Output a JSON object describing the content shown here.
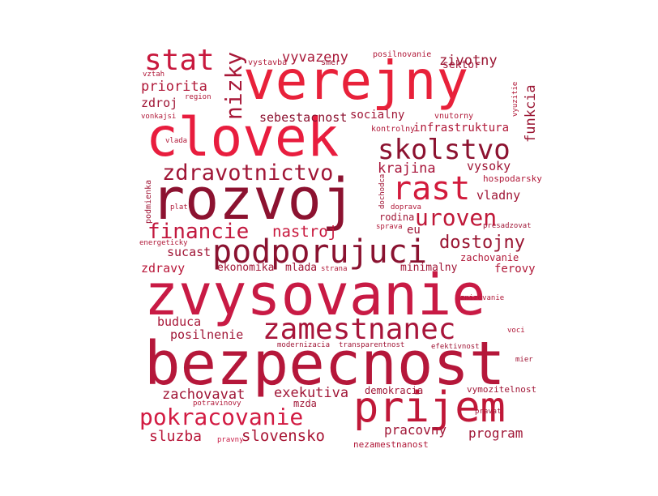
{
  "words": [
    {
      "text": "bezpecnost",
      "color": "#b5173a"
    },
    {
      "text": "zvysovanie",
      "color": "#c81a44"
    },
    {
      "text": "rozvoj",
      "color": "#8c1230"
    },
    {
      "text": "clovek",
      "color": "#e81d3e"
    },
    {
      "text": "verejny",
      "color": "#e8213a"
    },
    {
      "text": "prijem",
      "color": "#c01838"
    },
    {
      "text": "podporujuci",
      "color": "#8a1230"
    },
    {
      "text": "zamestnanec",
      "color": "#a8153a"
    },
    {
      "text": "skolstvo",
      "color": "#8c1230"
    },
    {
      "text": "rast",
      "color": "#d21b3c"
    },
    {
      "text": "stat",
      "color": "#c8193e"
    },
    {
      "text": "zdravotnictvo",
      "color": "#a01636"
    },
    {
      "text": "uroven",
      "color": "#c01838"
    },
    {
      "text": "pokracovanie",
      "color": "#d21b42"
    },
    {
      "text": "financie",
      "color": "#c2183e"
    },
    {
      "text": "nizky",
      "color": "#a81838"
    },
    {
      "text": "dostojny",
      "color": "#9a1532"
    },
    {
      "text": "slovensko",
      "color": "#a81534"
    },
    {
      "text": "nastroj",
      "color": "#c8193e"
    },
    {
      "text": "krajina",
      "color": "#a8153a"
    },
    {
      "text": "sluzba",
      "color": "#b81638"
    },
    {
      "text": "zachovavat",
      "color": "#a01636"
    },
    {
      "text": "exekutiva",
      "color": "#a01636"
    },
    {
      "text": "zivotny",
      "color": "#9a1532"
    },
    {
      "text": "vyvazeny",
      "color": "#a81838"
    },
    {
      "text": "funkcia",
      "color": "#9a1532"
    },
    {
      "text": "priorita",
      "color": "#b01838"
    },
    {
      "text": "pracovny",
      "color": "#a01636"
    },
    {
      "text": "program",
      "color": "#a01636"
    },
    {
      "text": "sebestacnost",
      "color": "#8c1230"
    },
    {
      "text": "socialny",
      "color": "#a01636"
    },
    {
      "text": "infrastruktura",
      "color": "#b01838"
    },
    {
      "text": "posilnenie",
      "color": "#a01636"
    },
    {
      "text": "buduca",
      "color": "#a81838"
    },
    {
      "text": "vladny",
      "color": "#a01636"
    },
    {
      "text": "vysoky",
      "color": "#a01636"
    },
    {
      "text": "zdroj",
      "color": "#a01636"
    },
    {
      "text": "sucast",
      "color": "#a01636"
    },
    {
      "text": "zdravy",
      "color": "#b81638"
    },
    {
      "text": "ekonomika",
      "color": "#a01636"
    },
    {
      "text": "mlada",
      "color": "#a01636"
    },
    {
      "text": "minimalny",
      "color": "#a01636"
    },
    {
      "text": "ferovy",
      "color": "#b01838"
    },
    {
      "text": "eu",
      "color": "#a01636"
    },
    {
      "text": "rodina",
      "color": "#a01636"
    },
    {
      "text": "sektor",
      "color": "#a01636"
    },
    {
      "text": "demokracia",
      "color": "#a01636"
    },
    {
      "text": "vymozitelnost",
      "color": "#a01636"
    },
    {
      "text": "nezamestnanost",
      "color": "#b01838"
    },
    {
      "text": "zachovanie",
      "color": "#b01838"
    },
    {
      "text": "mzda",
      "color": "#a01636"
    },
    {
      "text": "hospodarsky",
      "color": "#b01838"
    },
    {
      "text": "posilnovanie",
      "color": "#b01838"
    },
    {
      "text": "smer",
      "color": "#a01636"
    },
    {
      "text": "vystavba",
      "color": "#b01838"
    },
    {
      "text": "vnutorny",
      "color": "#b01838"
    },
    {
      "text": "kontrolny",
      "color": "#b01838"
    },
    {
      "text": "podmienka",
      "color": "#a01636"
    },
    {
      "text": "energeticky",
      "color": "#b01838"
    },
    {
      "text": "potravinovy",
      "color": "#b01838"
    },
    {
      "text": "pravny",
      "color": "#c81a44"
    },
    {
      "text": "modernizacia",
      "color": "#a01636"
    },
    {
      "text": "transparentnost",
      "color": "#a01636"
    },
    {
      "text": "efektivnost",
      "color": "#a01636"
    },
    {
      "text": "presadzovat",
      "color": "#a01636"
    },
    {
      "text": "sprava",
      "color": "#b01838"
    },
    {
      "text": "doprava",
      "color": "#b01838"
    },
    {
      "text": "dochodca",
      "color": "#a01636"
    },
    {
      "text": "vyuzitie",
      "color": "#b01838"
    },
    {
      "text": "znizovanie",
      "color": "#b01838"
    },
    {
      "text": "voci",
      "color": "#b01838"
    },
    {
      "text": "mier",
      "color": "#a01636"
    },
    {
      "text": "pravat",
      "color": "#a01636"
    },
    {
      "text": "plat",
      "color": "#b01838"
    },
    {
      "text": "vlada",
      "color": "#b01838"
    },
    {
      "text": "vztah",
      "color": "#b01838"
    },
    {
      "text": "region",
      "color": "#b01838"
    },
    {
      "text": "vonkajsi",
      "color": "#b01838"
    },
    {
      "text": "strana",
      "color": "#b01838"
    }
  ]
}
